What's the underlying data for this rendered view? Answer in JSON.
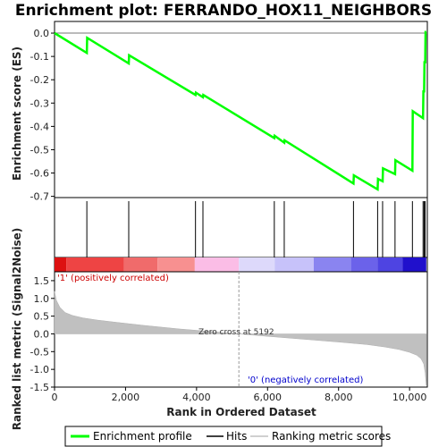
{
  "chart_data": {
    "type": "line",
    "title": "Enrichment plot: FERRANDO_HOX11_NEIGHBORS",
    "top_panel": {
      "ylabel": "Enrichment score (ES)",
      "ylim": [
        -0.7,
        0.05
      ],
      "yticks": [
        0.0,
        -0.1,
        -0.2,
        -0.3,
        -0.4,
        -0.5,
        -0.6,
        -0.7
      ],
      "ytick_labels": [
        "0.0",
        "-0.1",
        "-0.2",
        "-0.3",
        "-0.4",
        "-0.5",
        "-0.6",
        "-0.7"
      ],
      "series": [
        {
          "name": "Enrichment profile",
          "color": "#00ff00",
          "x": [
            0,
            910,
            920,
            2090,
            2100,
            3970,
            3980,
            4180,
            4190,
            6190,
            6200,
            6470,
            6480,
            8420,
            8430,
            9100,
            9110,
            9240,
            9250,
            9590,
            9600,
            10080,
            10090,
            10380,
            10390,
            10410,
            10420,
            10440,
            10450,
            10470
          ],
          "y": [
            0.0,
            -0.085,
            -0.02,
            -0.13,
            -0.095,
            -0.265,
            -0.255,
            -0.275,
            -0.265,
            -0.45,
            -0.44,
            -0.47,
            -0.46,
            -0.645,
            -0.61,
            -0.67,
            -0.625,
            -0.635,
            -0.58,
            -0.605,
            -0.545,
            -0.59,
            -0.335,
            -0.365,
            -0.25,
            -0.25,
            -0.125,
            -0.125,
            0.005,
            0.005
          ]
        }
      ]
    },
    "hits": {
      "name": "Hits",
      "positions": [
        910,
        2090,
        3970,
        4180,
        6190,
        6470,
        8420,
        9100,
        9240,
        9590,
        10080,
        10380,
        10410,
        10440
      ]
    },
    "heatmap_bar": {
      "segments": [
        {
          "from": 0,
          "to": 330,
          "color": "#dd1111"
        },
        {
          "from": 330,
          "to": 1950,
          "color": "#ee4444"
        },
        {
          "from": 1950,
          "to": 2900,
          "color": "#f06b6b"
        },
        {
          "from": 2900,
          "to": 3950,
          "color": "#f79090"
        },
        {
          "from": 3950,
          "to": 5192,
          "color": "#fbbde6"
        },
        {
          "from": 5192,
          "to": 6200,
          "color": "#ddd9fb"
        },
        {
          "from": 6200,
          "to": 7300,
          "color": "#c7c2fa"
        },
        {
          "from": 7300,
          "to": 8350,
          "color": "#8a84f0"
        },
        {
          "from": 8350,
          "to": 9100,
          "color": "#6b62ea"
        },
        {
          "from": 9100,
          "to": 9800,
          "color": "#4e44e2"
        },
        {
          "from": 9800,
          "to": 10470,
          "color": "#2010cc"
        }
      ]
    },
    "bottom_panel": {
      "ylabel": "Ranked list metric (Signal2Noise)",
      "ylim": [
        -1.5,
        1.75
      ],
      "yticks": [
        1.5,
        1.0,
        0.5,
        0.0,
        -0.5,
        -1.0,
        -1.5
      ],
      "ytick_labels": [
        "1.5",
        "1.0",
        "0.5",
        "0.0",
        "-0.5",
        "-1.0",
        "-1.5"
      ],
      "metric": {
        "name": "Ranking metric scores",
        "color": "#c0c0c0",
        "x": [
          0,
          50,
          150,
          300,
          500,
          800,
          1200,
          1800,
          2500,
          3500,
          4500,
          5192,
          6000,
          7000,
          8000,
          8800,
          9300,
          9700,
          10000,
          10200,
          10320,
          10400,
          10440,
          10470
        ],
        "y": [
          1.2,
          0.95,
          0.75,
          0.6,
          0.52,
          0.45,
          0.39,
          0.32,
          0.24,
          0.14,
          0.06,
          0.0,
          -0.07,
          -0.15,
          -0.23,
          -0.3,
          -0.37,
          -0.44,
          -0.52,
          -0.6,
          -0.7,
          -0.85,
          -1.1,
          -1.45
        ]
      },
      "zero_cross_label": "Zero cross at 5192",
      "zero_cross_x": 5192,
      "positive_label": "'1' (positively correlated)",
      "negative_label": "'0' (negatively correlated)"
    },
    "xlabel": "Rank in Ordered Dataset",
    "xlim": [
      0,
      10500
    ],
    "xticks": [
      0,
      2000,
      4000,
      6000,
      8000,
      10000
    ],
    "xtick_labels": [
      "0",
      "2,000",
      "4,000",
      "6,000",
      "8,000",
      "10,000"
    ],
    "legend": {
      "placement": "bottom",
      "entries": [
        {
          "label": "Enrichment profile",
          "color": "#00ff00"
        },
        {
          "label": "Hits",
          "color": "#000000"
        },
        {
          "label": "Ranking metric scores",
          "color": "#c0c0c0"
        }
      ]
    }
  }
}
